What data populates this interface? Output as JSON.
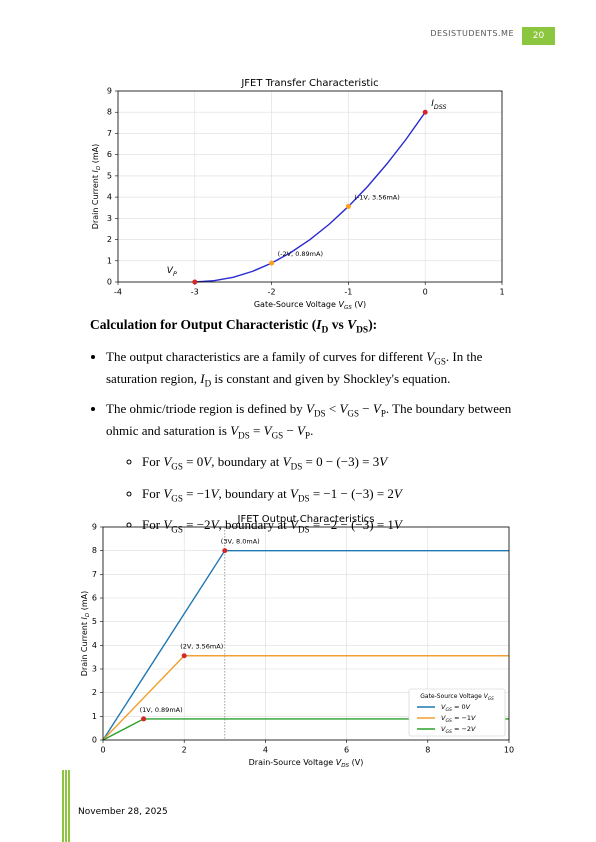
{
  "header": {
    "site": "DESISTUDENTS.ME",
    "page": "20"
  },
  "chart_data": [
    {
      "type": "line",
      "title": "JFET Transfer Characteristic",
      "xlabel": [
        {
          "t": "Gate-Source Voltage "
        },
        {
          "i": "V",
          "s": "GS"
        },
        {
          "t": " (V)"
        }
      ],
      "ylabel": [
        {
          "t": "Drain Current "
        },
        {
          "i": "I",
          "s": "D"
        },
        {
          "t": " (mA)"
        }
      ],
      "xlim": [
        -4,
        1
      ],
      "ylim": [
        0,
        9
      ],
      "xticks": [
        -4,
        -3,
        -2,
        -1,
        0,
        1
      ],
      "yticks": [
        0,
        1,
        2,
        3,
        4,
        5,
        6,
        7,
        8,
        9
      ],
      "grid": true,
      "series": [
        {
          "color": "#2a2ad0",
          "x": [
            -3,
            -2.75,
            -2.5,
            -2.25,
            -2,
            -1.75,
            -1.5,
            -1.25,
            -1,
            -0.75,
            -0.5,
            -0.25,
            0
          ],
          "values": [
            0,
            0.06,
            0.22,
            0.5,
            0.89,
            1.39,
            2,
            2.72,
            3.56,
            4.5,
            5.56,
            6.72,
            8
          ]
        }
      ],
      "annotations": [
        {
          "x": -3,
          "y": 0,
          "color": "#d62728",
          "label": [
            {
              "i": "V",
              "s": "P"
            }
          ]
        },
        {
          "x": 0,
          "y": 8,
          "color": "#d62728",
          "label": [
            {
              "i": "I",
              "s": "DSS"
            }
          ]
        },
        {
          "x": -2,
          "y": 0.89,
          "color": "#ff9f1c",
          "label": [
            {
              "t": "(-2V, 0.89mA)"
            }
          ]
        },
        {
          "x": -1,
          "y": 3.56,
          "color": "#ff9f1c",
          "label": [
            {
              "t": "(-1V, 3.56mA)"
            }
          ]
        }
      ]
    },
    {
      "type": "line",
      "title": "JFET Output Characteristics",
      "xlabel": [
        {
          "t": "Drain-Source Voltage "
        },
        {
          "i": "V",
          "s": "DS"
        },
        {
          "t": " (V)"
        }
      ],
      "ylabel": [
        {
          "t": "Drain Current "
        },
        {
          "i": "I",
          "s": "D"
        },
        {
          "t": " (mA)"
        }
      ],
      "xlim": [
        0,
        10
      ],
      "ylim": [
        0,
        9
      ],
      "xticks": [
        0,
        2,
        4,
        6,
        8,
        10
      ],
      "yticks": [
        0,
        1,
        2,
        3,
        4,
        5,
        6,
        7,
        8,
        9
      ],
      "grid": true,
      "vlines": [
        3
      ],
      "series": [
        {
          "name": [
            {
              "i": "V",
              "s": "GS"
            },
            {
              "t": " = 0"
            },
            {
              "i": "V"
            }
          ],
          "color": "#1f77b4",
          "x": [
            0,
            3,
            10
          ],
          "values": [
            0,
            8,
            8
          ]
        },
        {
          "name": [
            {
              "i": "V",
              "s": "GS"
            },
            {
              "t": " = −1"
            },
            {
              "i": "V"
            }
          ],
          "color": "#f0a030",
          "x": [
            0,
            2,
            10
          ],
          "values": [
            0,
            3.56,
            3.56
          ]
        },
        {
          "name": [
            {
              "i": "V",
              "s": "GS"
            },
            {
              "t": " = −2"
            },
            {
              "i": "V"
            }
          ],
          "color": "#2ca02c",
          "x": [
            0,
            1,
            10
          ],
          "values": [
            0,
            0.89,
            0.89
          ]
        }
      ],
      "legend": {
        "position": "lower right",
        "title": [
          {
            "t": "Gate-Source Voltage "
          },
          {
            "i": "V",
            "s": "GS"
          }
        ]
      },
      "annotations": [
        {
          "x": 3,
          "y": 8,
          "color": "#d62728",
          "label": [
            {
              "t": "(3V, 8.0mA)"
            }
          ]
        },
        {
          "x": 2,
          "y": 3.56,
          "color": "#d62728",
          "label": [
            {
              "t": "(2V, 3.56mA)"
            }
          ]
        },
        {
          "x": 1,
          "y": 0.89,
          "color": "#d62728",
          "label": [
            {
              "t": "(1V, 0.89mA)"
            }
          ]
        }
      ]
    }
  ],
  "body": {
    "heading": [
      {
        "t": "Calculation for Output Characteristic ("
      },
      {
        "i": "I",
        "s": "D"
      },
      {
        "t": " vs "
      },
      {
        "i": "V",
        "s": "DS"
      },
      {
        "t": "):"
      }
    ],
    "bullets": [
      [
        {
          "t": "The output characteristics are a family of curves for different "
        },
        {
          "i": "V",
          "s": "GS"
        },
        {
          "t": ". In the saturation region, "
        },
        {
          "i": "I",
          "s": "D"
        },
        {
          "t": " is constant and given by Shockley's equation."
        }
      ],
      [
        {
          "t": "The ohmic/triode region is defined by "
        },
        {
          "i": "V",
          "s": "DS"
        },
        {
          "t": " < "
        },
        {
          "i": "V",
          "s": "GS"
        },
        {
          "t": " − "
        },
        {
          "i": "V",
          "s": "P"
        },
        {
          "t": ". The boundary between ohmic and saturation is "
        },
        {
          "i": "V",
          "s": "DS"
        },
        {
          "t": " = "
        },
        {
          "i": "V",
          "s": "GS"
        },
        {
          "t": " − "
        },
        {
          "i": "V",
          "s": "P"
        },
        {
          "t": "."
        }
      ]
    ],
    "subbullets": [
      [
        {
          "t": "For "
        },
        {
          "i": "V",
          "s": "GS"
        },
        {
          "t": " = 0"
        },
        {
          "i": "V"
        },
        {
          "t": ", boundary at "
        },
        {
          "i": "V",
          "s": "DS"
        },
        {
          "t": " = 0 − (−3) = 3"
        },
        {
          "i": "V"
        }
      ],
      [
        {
          "t": "For "
        },
        {
          "i": "V",
          "s": "GS"
        },
        {
          "t": " = −1"
        },
        {
          "i": "V"
        },
        {
          "t": ", boundary at "
        },
        {
          "i": "V",
          "s": "DS"
        },
        {
          "t": " = −1 − (−3) = 2"
        },
        {
          "i": "V"
        }
      ],
      [
        {
          "t": "For "
        },
        {
          "i": "V",
          "s": "GS"
        },
        {
          "t": " = −2"
        },
        {
          "i": "V"
        },
        {
          "t": ", boundary at "
        },
        {
          "i": "V",
          "s": "DS"
        },
        {
          "t": " = −2 − (−3) = 1"
        },
        {
          "i": "V"
        }
      ]
    ]
  },
  "footer": {
    "date": "November 28, 2025"
  }
}
